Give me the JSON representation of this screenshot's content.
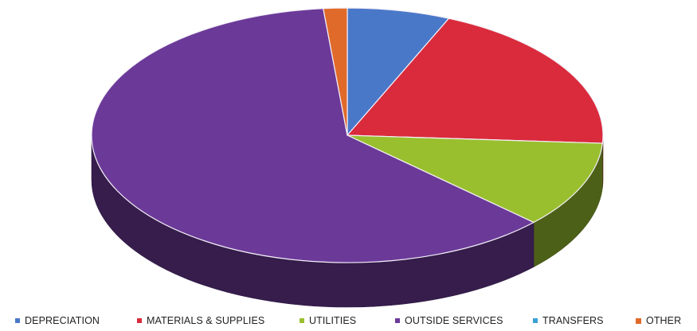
{
  "chart_data": {
    "type": "pie",
    "style": "3d",
    "title": "",
    "legend_position": "bottom",
    "categories": [
      "DEPRECIATION",
      "MATERIALS & SUPPLIES",
      "UTILITIES",
      "OUTSIDE SERVICES",
      "TRANSFERS",
      "OTHER"
    ],
    "values": [
      6.5,
      19.5,
      11.0,
      61.5,
      0.0,
      1.5
    ],
    "unit": "percent",
    "colors": [
      "#4a78c9",
      "#d92b3c",
      "#99bf2e",
      "#6b3a98",
      "#3aa0d6",
      "#e06a2a"
    ]
  }
}
